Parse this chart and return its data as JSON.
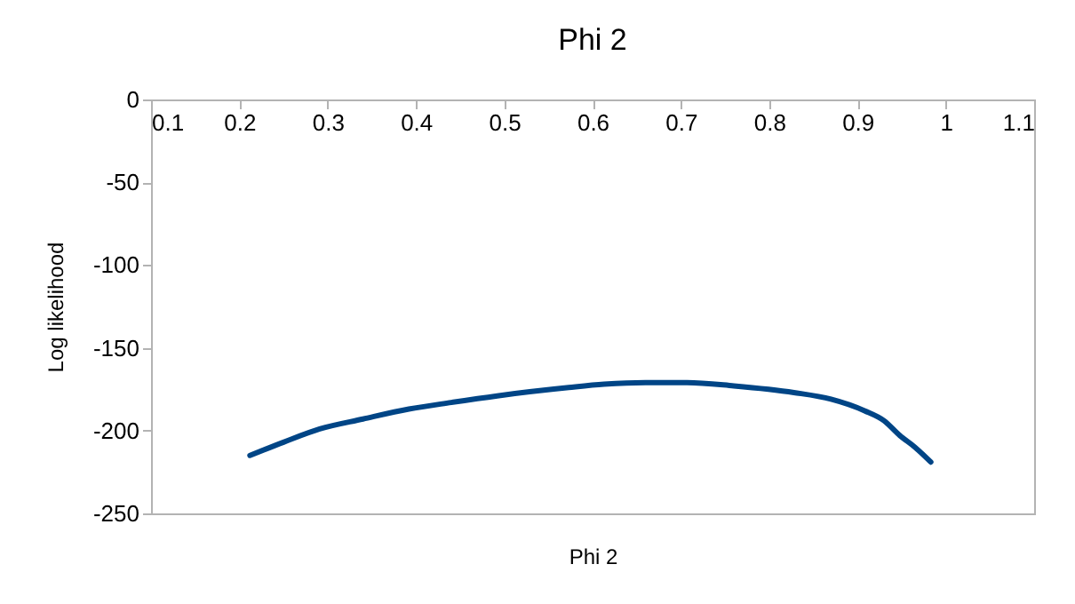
{
  "chart_data": {
    "type": "line",
    "title": "Phi 2",
    "xlabel": "Phi 2",
    "ylabel": "Log likelihood",
    "xlim": [
      0.1,
      1.1
    ],
    "xticks": [
      0.1,
      0.2,
      0.3,
      0.4,
      0.5,
      0.6,
      0.7,
      0.8,
      0.9,
      1,
      1.1
    ],
    "ylim": [
      -250,
      0
    ],
    "yticks": [
      -250,
      -200,
      -150,
      -100,
      -50,
      0
    ],
    "grid": false,
    "marker": "none",
    "line_style": "solid",
    "series": [
      {
        "color": "#004586",
        "x": [
          0.212,
          0.25,
          0.291,
          0.34,
          0.392,
          0.44,
          0.492,
          0.573,
          0.613,
          0.66,
          0.707,
          0.76,
          0.828,
          0.87,
          0.908,
          0.93,
          0.948,
          0.965,
          0.983
        ],
        "values": [
          -215,
          -207,
          -199,
          -193,
          -187,
          -183,
          -179,
          -174,
          -172,
          -171,
          -171,
          -173,
          -177,
          -181,
          -188,
          -194,
          -203,
          -210,
          -219
        ]
      }
    ]
  }
}
